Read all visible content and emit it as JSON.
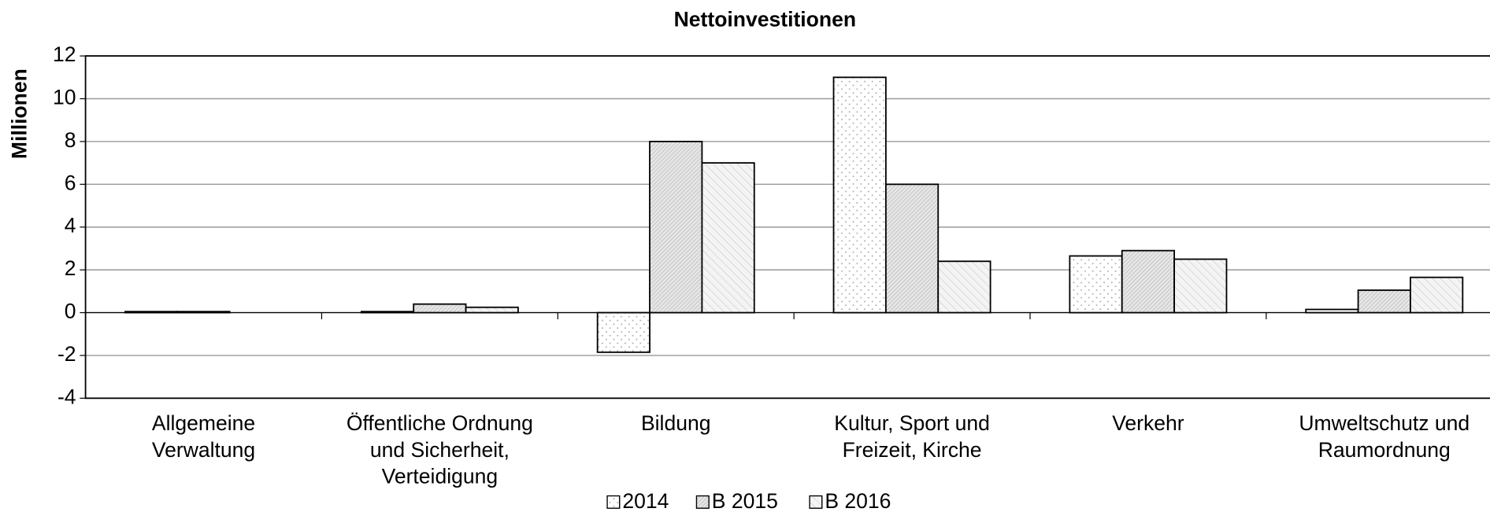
{
  "chart_data": {
    "type": "bar",
    "title": "Nettoinvestitionen",
    "ylabel": "Millionen",
    "categories": [
      [
        "Allgemeine",
        "Verwaltung"
      ],
      [
        "Öffentliche Ordnung",
        "und Sicherheit,",
        "Verteidigung"
      ],
      [
        "Bildung"
      ],
      [
        "Kultur, Sport und",
        "Freizeit, Kirche"
      ],
      [
        "Verkehr"
      ],
      [
        "Umweltschutz und",
        "Raumordnung"
      ]
    ],
    "series": [
      {
        "name": "2014",
        "color": "#ffffff",
        "values": [
          0.05,
          0.05,
          -1.85,
          11,
          2.65,
          0.15
        ]
      },
      {
        "name": "B 2015",
        "color": "#e6e6e6",
        "values": [
          0.05,
          0.4,
          8,
          6,
          2.9,
          1.05
        ]
      },
      {
        "name": "B 2016",
        "color": "#f4f4f4",
        "values": [
          0,
          0.25,
          7,
          2.4,
          2.5,
          1.65
        ]
      }
    ],
    "ylim": [
      -4,
      12
    ],
    "yticks": [
      -4,
      -2,
      0,
      2,
      4,
      6,
      8,
      10,
      12
    ],
    "grid": true,
    "legend": "bottom"
  }
}
